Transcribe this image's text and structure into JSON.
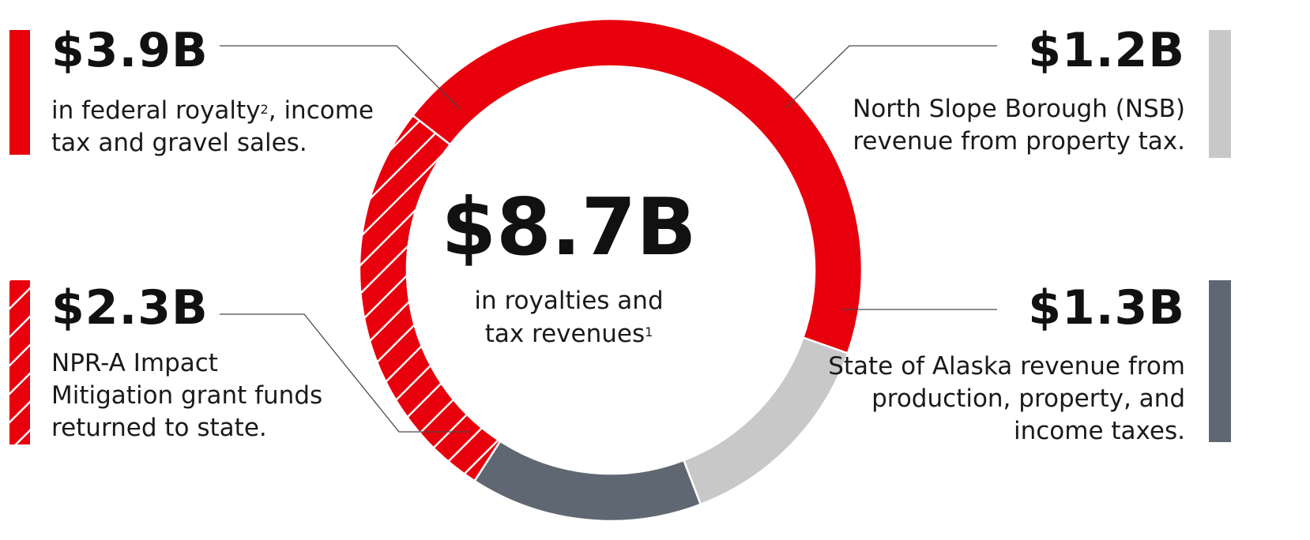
{
  "chart_data": {
    "type": "pie",
    "center": {
      "value": "$8.7B",
      "label_line1": "in royalties and",
      "label_line2": "tax revenues",
      "footnote": "1"
    },
    "segments": [
      {
        "value": 3.9,
        "amount": "$3.9B",
        "color": "#e8000d",
        "pattern": "solid",
        "line1_pre": "in federal royalty",
        "line1_sup": "2",
        "line1_post": ", income",
        "line2": "tax and gravel sales."
      },
      {
        "value": 1.2,
        "amount": "$1.2B",
        "color": "#c8c8c8",
        "pattern": "solid",
        "line1": "North Slope Borough (NSB)",
        "line2": "revenue from property tax."
      },
      {
        "value": 1.3,
        "amount": "$1.3B",
        "color": "#5f6772",
        "pattern": "solid",
        "line1": "State of Alaska revenue from",
        "line2": "production, property, and",
        "line3": "income taxes."
      },
      {
        "value": 2.3,
        "amount": "$2.3B",
        "color": "#e8000d",
        "pattern": "hatched",
        "line1": "NPR-A Impact",
        "line2": "Mitigation grant funds",
        "line3": "returned to state."
      }
    ]
  }
}
